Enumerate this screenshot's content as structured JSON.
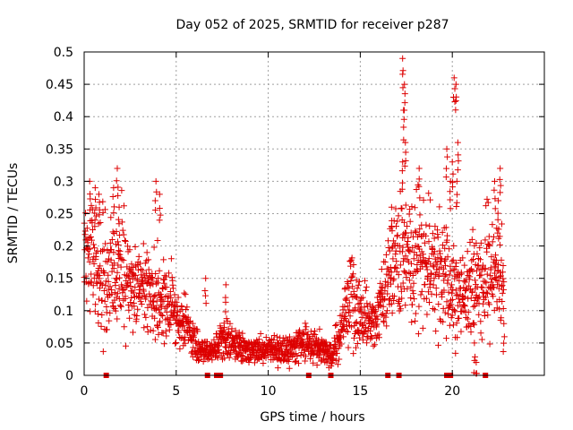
{
  "chart_data": {
    "type": "scatter",
    "title": "Day 052 of 2025, SRMTID for receiver p287",
    "xlabel": "GPS time / hours",
    "ylabel": "SRMTID / TECUs",
    "xlim": [
      0,
      25
    ],
    "ylim": [
      0,
      0.5
    ],
    "xticks": [
      0,
      5,
      10,
      15,
      20
    ],
    "xtick_labels": [
      "0",
      "5",
      "10",
      "15",
      "20"
    ],
    "yticks": [
      0,
      0.05,
      0.1,
      0.15,
      0.2,
      0.25,
      0.3,
      0.35,
      0.4,
      0.45,
      0.5
    ],
    "ytick_labels": [
      "0",
      "0.05",
      "0.1",
      "0.15",
      "0.2",
      "0.25",
      "0.3",
      "0.35",
      "0.4",
      "0.45",
      "0.5"
    ],
    "grid": true,
    "marker": "+",
    "series": [
      {
        "name": "SRMTID",
        "color": "#dd0000",
        "trend": {
          "x": [
            0,
            0.5,
            1,
            2,
            3,
            4,
            5,
            5.5,
            6,
            6.5,
            7,
            7.5,
            8,
            9,
            10,
            11,
            12,
            13,
            13.5,
            14,
            14.5,
            15,
            15.5,
            16,
            16.5,
            17,
            18,
            19,
            20,
            20.5,
            21,
            22,
            22.8
          ],
          "y": [
            0.19,
            0.17,
            0.15,
            0.16,
            0.13,
            0.12,
            0.1,
            0.08,
            0.05,
            0.035,
            0.035,
            0.06,
            0.05,
            0.04,
            0.04,
            0.04,
            0.05,
            0.04,
            0.03,
            0.08,
            0.12,
            0.1,
            0.07,
            0.09,
            0.15,
            0.17,
            0.18,
            0.17,
            0.14,
            0.12,
            0.14,
            0.16,
            0.15
          ]
        },
        "spikes": [
          {
            "x": 0.3,
            "y": 0.3
          },
          {
            "x": 0.6,
            "y": 0.29
          },
          {
            "x": 0.8,
            "y": 0.28
          },
          {
            "x": 1.6,
            "y": 0.29
          },
          {
            "x": 1.8,
            "y": 0.32
          },
          {
            "x": 1.9,
            "y": 0.26
          },
          {
            "x": 3.9,
            "y": 0.3
          },
          {
            "x": 4.1,
            "y": 0.28
          },
          {
            "x": 6.6,
            "y": 0.15
          },
          {
            "x": 7.7,
            "y": 0.14
          },
          {
            "x": 16.7,
            "y": 0.26
          },
          {
            "x": 17.3,
            "y": 0.49
          },
          {
            "x": 17.4,
            "y": 0.45
          },
          {
            "x": 17.35,
            "y": 0.41
          },
          {
            "x": 17.45,
            "y": 0.36
          },
          {
            "x": 17.3,
            "y": 0.33
          },
          {
            "x": 18.2,
            "y": 0.32
          },
          {
            "x": 19.7,
            "y": 0.35
          },
          {
            "x": 19.9,
            "y": 0.3
          },
          {
            "x": 20.0,
            "y": 0.33
          },
          {
            "x": 20.1,
            "y": 0.46
          },
          {
            "x": 20.2,
            "y": 0.45
          },
          {
            "x": 20.3,
            "y": 0.36
          },
          {
            "x": 20.25,
            "y": 0.3
          },
          {
            "x": 21.3,
            "y": 0.02
          },
          {
            "x": 21.2,
            "y": 0.05
          },
          {
            "x": 22.3,
            "y": 0.3
          },
          {
            "x": 22.6,
            "y": 0.32
          },
          {
            "x": 22.5,
            "y": 0.27
          },
          {
            "x": 22.8,
            "y": 0.08
          }
        ],
        "zero_values": [
          1.2,
          6.7,
          7.2,
          7.4,
          12.2,
          13.4,
          16.5,
          17.1,
          19.7,
          19.9,
          21.8
        ]
      }
    ]
  }
}
